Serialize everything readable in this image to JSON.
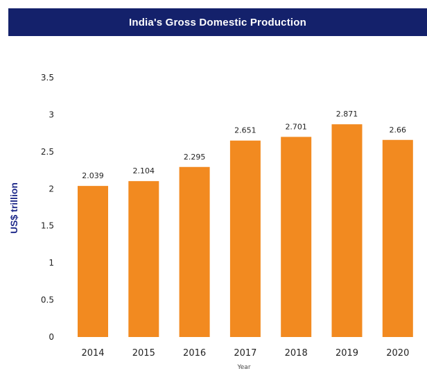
{
  "chart_data": {
    "type": "bar",
    "title": "India's Gross Domestic Production",
    "xlabel": "Year",
    "ylabel": "US$ trillion",
    "categories": [
      "2014",
      "2015",
      "2016",
      "2017",
      "2018",
      "2019",
      "2020"
    ],
    "values": [
      2.039,
      2.104,
      2.295,
      2.651,
      2.701,
      2.871,
      2.66
    ],
    "data_labels": [
      "2.039",
      "2.104",
      "2.295",
      "2.651",
      "2.701",
      "2.871",
      "2.66"
    ],
    "yticks": [
      "0",
      "0.5",
      "1",
      "1.5",
      "2",
      "2.5",
      "3",
      "3.5"
    ],
    "ylim": [
      0,
      3.5
    ],
    "grid": false,
    "legend": "none",
    "bar_color": "#f28a20",
    "title_bar_color": "#14216b",
    "ylabel_color": "#1f2a8a"
  }
}
